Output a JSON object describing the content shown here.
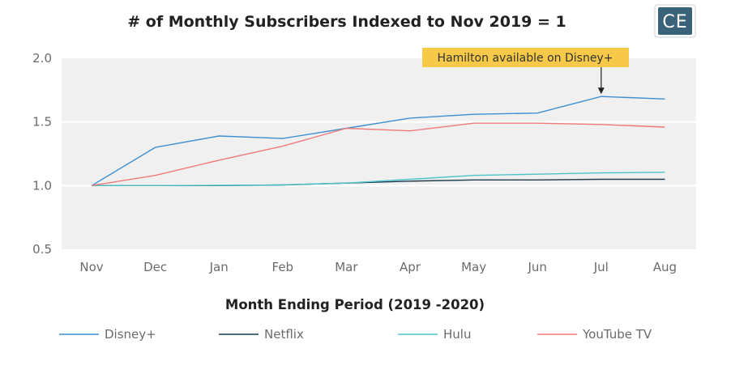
{
  "logo": {
    "text": "CE",
    "color": "#3a6278"
  },
  "chart_data": {
    "type": "line",
    "title": "# of Monthly Subscribers Indexed to Nov 2019 = 1",
    "xlabel": "Month Ending Period (2019 -2020)",
    "ylabel": "",
    "categories": [
      "Nov",
      "Dec",
      "Jan",
      "Feb",
      "Mar",
      "Apr",
      "May",
      "Jun",
      "Jul",
      "Aug"
    ],
    "ylim": [
      0.5,
      2.0
    ],
    "yticks": [
      "0.5",
      "1.0",
      "1.5",
      "2.0"
    ],
    "grid": true,
    "legend_position": "bottom",
    "series": [
      {
        "name": "Disney+",
        "color": "#3f8fd2",
        "values": [
          1.0,
          1.3,
          1.39,
          1.37,
          1.45,
          1.53,
          1.56,
          1.57,
          1.7,
          1.68
        ]
      },
      {
        "name": "Netflix",
        "color": "#1f3a4d",
        "values": [
          1.0,
          1.0,
          1.0,
          1.005,
          1.02,
          1.035,
          1.045,
          1.045,
          1.05,
          1.05
        ]
      },
      {
        "name": "Hulu",
        "color": "#4cc3c9",
        "values": [
          1.0,
          1.0,
          1.002,
          1.006,
          1.02,
          1.05,
          1.08,
          1.09,
          1.1,
          1.105
        ]
      },
      {
        "name": "YouTube TV",
        "color": "#f07a7a",
        "values": [
          1.0,
          1.08,
          1.2,
          1.31,
          1.45,
          1.43,
          1.49,
          1.49,
          1.48,
          1.46
        ]
      }
    ],
    "annotation": {
      "text": "Hamilton available on Disney+",
      "category": "Jul",
      "color": "#f7c948"
    }
  }
}
